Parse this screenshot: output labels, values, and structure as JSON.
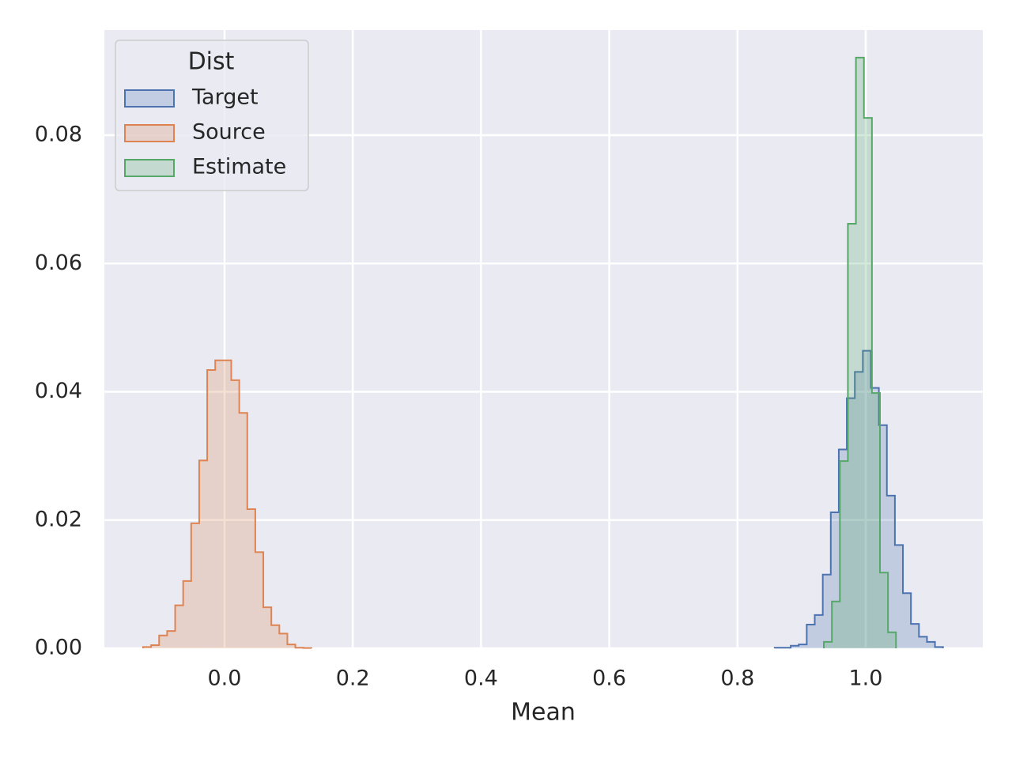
{
  "chart_data": {
    "type": "histogram",
    "x_label": "Mean",
    "legend_title": "Dist",
    "legend_position": "upper left",
    "grid": true,
    "xlim": [
      -0.1874,
      1.1825
    ],
    "ylim": [
      0,
      0.0964
    ],
    "xticks": [
      {
        "value": 0,
        "label": "0.0"
      },
      0.2,
      0.4,
      0.6,
      0.8,
      {
        "value": 1,
        "label": "1.0"
      }
    ],
    "yticks": [
      {
        "value": 0,
        "label": "0.00"
      },
      0.02,
      0.04,
      0.06,
      0.08
    ],
    "series": [
      {
        "name": "Target",
        "color": "#4c72b0",
        "bins": [
          0.858,
          0.8705,
          0.883,
          0.8955,
          0.908,
          0.9205,
          0.933,
          0.9455,
          0.958,
          0.9705,
          0.983,
          0.9955,
          1.008,
          1.0205,
          1.033,
          1.0455,
          1.058,
          1.0705,
          1.083,
          1.0955,
          1.108,
          1.1205
        ],
        "values": [
          0.0001,
          0.0001,
          0.0004,
          0.0006,
          0.0037,
          0.0052,
          0.0115,
          0.0212,
          0.031,
          0.039,
          0.0431,
          0.0464,
          0.0406,
          0.0348,
          0.0238,
          0.0161,
          0.0086,
          0.0038,
          0.0018,
          0.001,
          0.0002
        ]
      },
      {
        "name": "Source",
        "color": "#dd8452",
        "bins": [
          -0.127,
          -0.1145,
          -0.102,
          -0.0895,
          -0.077,
          -0.0645,
          -0.052,
          -0.0395,
          -0.027,
          -0.0145,
          -0.002,
          0.0105,
          0.023,
          0.0355,
          0.048,
          0.0605,
          0.073,
          0.0855,
          0.098,
          0.1105,
          0.123,
          0.1355
        ],
        "values": [
          0.0002,
          0.0005,
          0.002,
          0.0027,
          0.0067,
          0.0105,
          0.0195,
          0.0293,
          0.0434,
          0.0449,
          0.0449,
          0.0418,
          0.0367,
          0.0217,
          0.015,
          0.0064,
          0.0036,
          0.0023,
          0.0006,
          0.0001,
          5e-05
        ]
      },
      {
        "name": "Estimate",
        "color": "#55a868",
        "bins": [
          0.9347,
          0.9472,
          0.9597,
          0.9722,
          0.9847,
          0.9972,
          1.0097,
          1.0222,
          1.0347,
          1.0472
        ],
        "values": [
          0.001,
          0.0073,
          0.0292,
          0.0662,
          0.0921,
          0.0827,
          0.0398,
          0.0118,
          0.0025
        ]
      }
    ]
  }
}
